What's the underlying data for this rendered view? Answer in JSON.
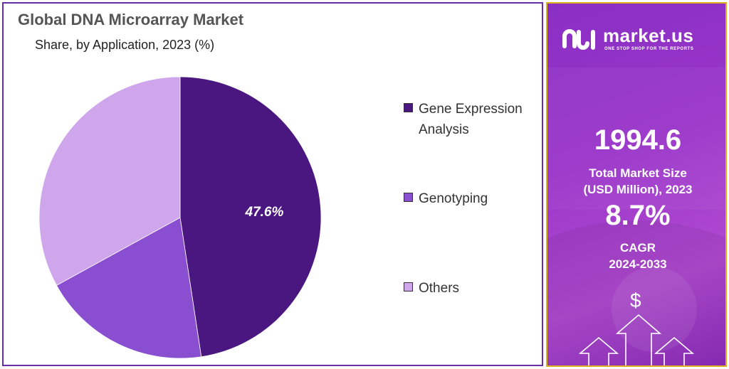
{
  "chart": {
    "title": "Global DNA Microarray Market",
    "subtitle": "Share, by Application, 2023 (%)"
  },
  "chart_data": {
    "type": "pie",
    "labels": [
      "Gene Expression Analysis",
      "Genotyping",
      "Others"
    ],
    "values": [
      47.6,
      19.4,
      33.0
    ],
    "value_labels": [
      "47.6%",
      "",
      ""
    ],
    "colors": [
      "#4a1680",
      "#8a4fd0",
      "#cfa5ec"
    ],
    "legend_position": "right",
    "legend_labels": [
      [
        "Gene Expression",
        "Analysis"
      ],
      [
        "Genotyping"
      ],
      [
        "Others"
      ]
    ]
  },
  "sidebar": {
    "brand": "market.us",
    "tagline": "ONE STOP SHOP FOR THE REPORTS",
    "market_size_value": "1994.6",
    "market_size_label_1": "Total Market Size",
    "market_size_label_2": "(USD Million), 2023",
    "cagr_value": "8.7%",
    "cagr_label_1": "CAGR",
    "cagr_label_2": "2024-2033",
    "currency_symbol": "$",
    "icons": [
      "marketus-logo-icon",
      "dollar-icon",
      "up-arrow-icon"
    ]
  }
}
